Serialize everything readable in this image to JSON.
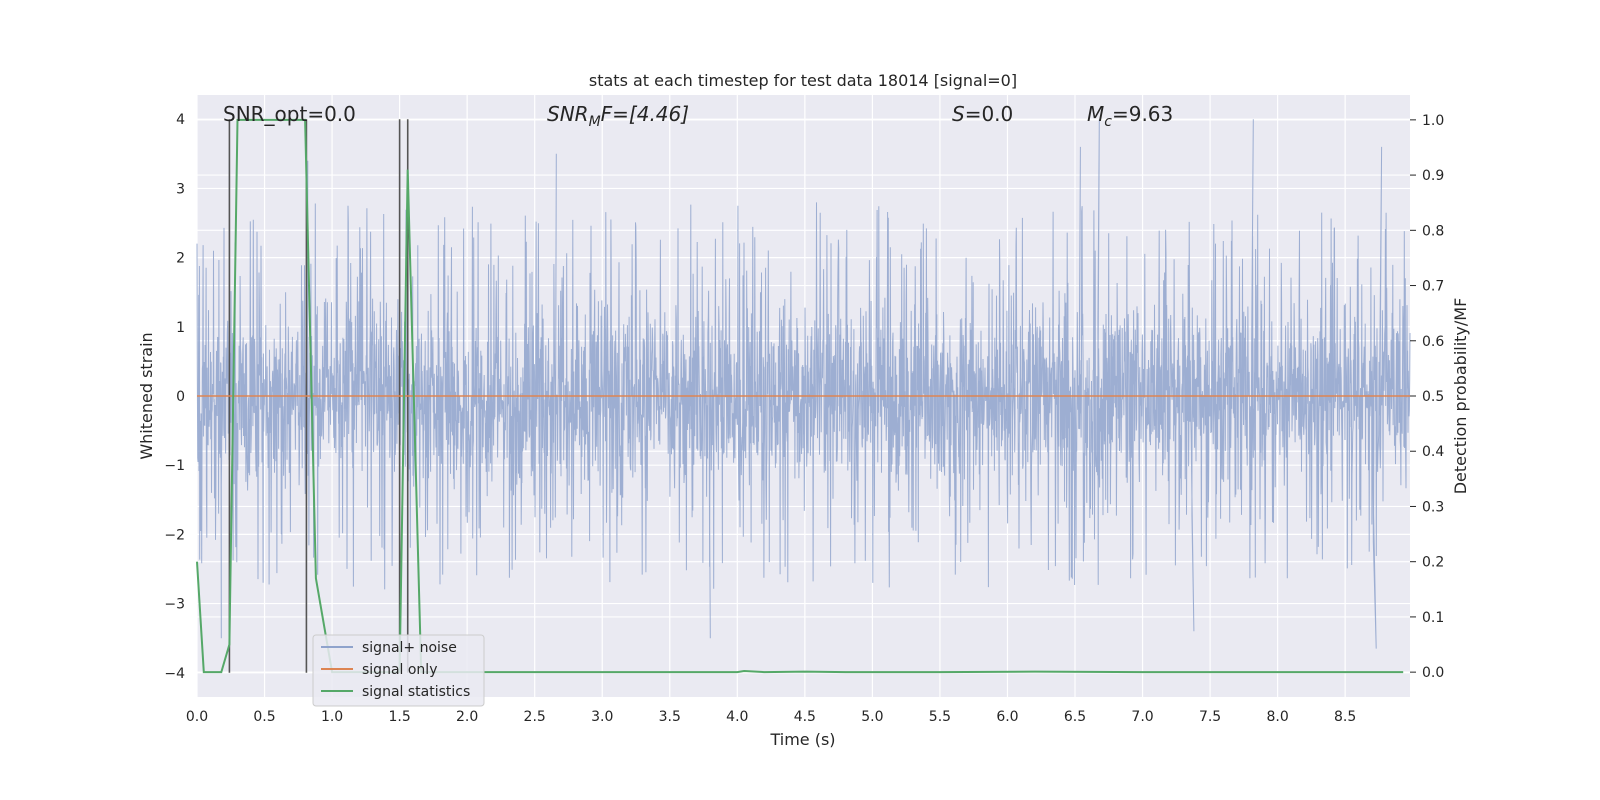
{
  "chart_data": {
    "type": "line",
    "title": "stats at each timestep for test data 18014 [signal=0]",
    "xlabel": "Time (s)",
    "ylabel": "Whitened strain",
    "y2label": "Detection probability/MF",
    "xlim": [
      0.0,
      8.98
    ],
    "ylim": [
      -4.35,
      4.35
    ],
    "y2lim": [
      -0.045,
      1.045
    ],
    "x_ticks": [
      0.0,
      0.5,
      1.0,
      1.5,
      2.0,
      2.5,
      3.0,
      3.5,
      4.0,
      4.5,
      5.0,
      5.5,
      6.0,
      6.5,
      7.0,
      7.5,
      8.0,
      8.5
    ],
    "x_tick_labels": [
      "0.0",
      "0.5",
      "1.0",
      "1.5",
      "2.0",
      "2.5",
      "3.0",
      "3.5",
      "4.0",
      "4.5",
      "5.0",
      "5.5",
      "6.0",
      "6.5",
      "7.0",
      "7.5",
      "8.0",
      "8.5"
    ],
    "y_ticks": [
      -4,
      -3,
      -2,
      -1,
      0,
      1,
      2,
      3,
      4
    ],
    "y_tick_labels": [
      "−4",
      "−3",
      "−2",
      "−1",
      "0",
      "1",
      "2",
      "3",
      "4"
    ],
    "y2_ticks": [
      0.0,
      0.1,
      0.2,
      0.3,
      0.4,
      0.5,
      0.6,
      0.7,
      0.8,
      0.9,
      1.0
    ],
    "y2_tick_labels": [
      "0.0",
      "0.1",
      "0.2",
      "0.3",
      "0.4",
      "0.5",
      "0.6",
      "0.7",
      "0.8",
      "0.9",
      "1.0"
    ],
    "grid": true,
    "legend_position": "bottom-left",
    "annotations": {
      "snr_opt": "SNR_opt=0.0",
      "snr_mf_main": "SNR",
      "snr_mf_sub": "M",
      "snr_mf_rest": "F=[4.46]",
      "s_main": "S",
      "s_rest": "=0.0",
      "mc_main": "M",
      "mc_sub": "c",
      "mc_rest": "=9.63"
    },
    "series": [
      {
        "name": "signal+ noise",
        "color": "#8fa3cc",
        "axis": "left",
        "style": "dense-noise",
        "duration_s": 8.98,
        "envelope": {
          "core": [
            -1.6,
            1.6
          ],
          "typical_peak": [
            -2.8,
            2.8
          ],
          "max": 4.0,
          "min": -3.65
        },
        "notable_peaks": [
          {
            "x": 0.24,
            "y": 3.6
          },
          {
            "x": 0.82,
            "y": 3.4
          },
          {
            "x": 2.66,
            "y": 3.5
          },
          {
            "x": 6.54,
            "y": 3.6
          },
          {
            "x": 6.68,
            "y": 4.0
          },
          {
            "x": 7.82,
            "y": 4.0
          },
          {
            "x": 8.77,
            "y": 3.6
          },
          {
            "x": 3.8,
            "y": -3.5
          },
          {
            "x": 7.38,
            "y": -3.4
          },
          {
            "x": 8.73,
            "y": -3.65
          },
          {
            "x": 0.18,
            "y": -3.5
          }
        ]
      },
      {
        "name": "signal only",
        "color": "#dd8452",
        "axis": "left",
        "x": [
          0.0,
          8.98
        ],
        "values": [
          0.0,
          0.0
        ]
      },
      {
        "name": "signal statistics",
        "color": "#55a868",
        "axis": "right",
        "x": [
          0.0,
          0.05,
          0.18,
          0.24,
          0.3,
          0.5,
          0.8,
          0.88,
          1.0,
          1.5,
          1.56,
          1.66,
          1.8,
          2.0,
          3.0,
          4.0,
          4.05,
          4.2,
          4.5,
          4.8,
          5.5,
          6.2,
          7.0,
          8.0,
          8.93
        ],
        "values": [
          0.2,
          0.0,
          0.0,
          0.05,
          1.0,
          1.0,
          1.0,
          0.17,
          0.0,
          0.0,
          0.91,
          0.0,
          0.0,
          0.0,
          0.0,
          0.0,
          0.002,
          0.0,
          0.001,
          0.0,
          0.0,
          0.001,
          0.0,
          0.0,
          0.0
        ]
      }
    ],
    "vertical_markers": [
      {
        "x": 0.24,
        "y_from": -4.0,
        "y_to": 4.0
      },
      {
        "x": 0.81,
        "y_from": -4.0,
        "y_to": 4.0
      },
      {
        "x": 1.5,
        "y_from": -4.0,
        "y_to": 4.0
      },
      {
        "x": 1.56,
        "y_from": -4.0,
        "y_to": 4.0
      }
    ]
  }
}
